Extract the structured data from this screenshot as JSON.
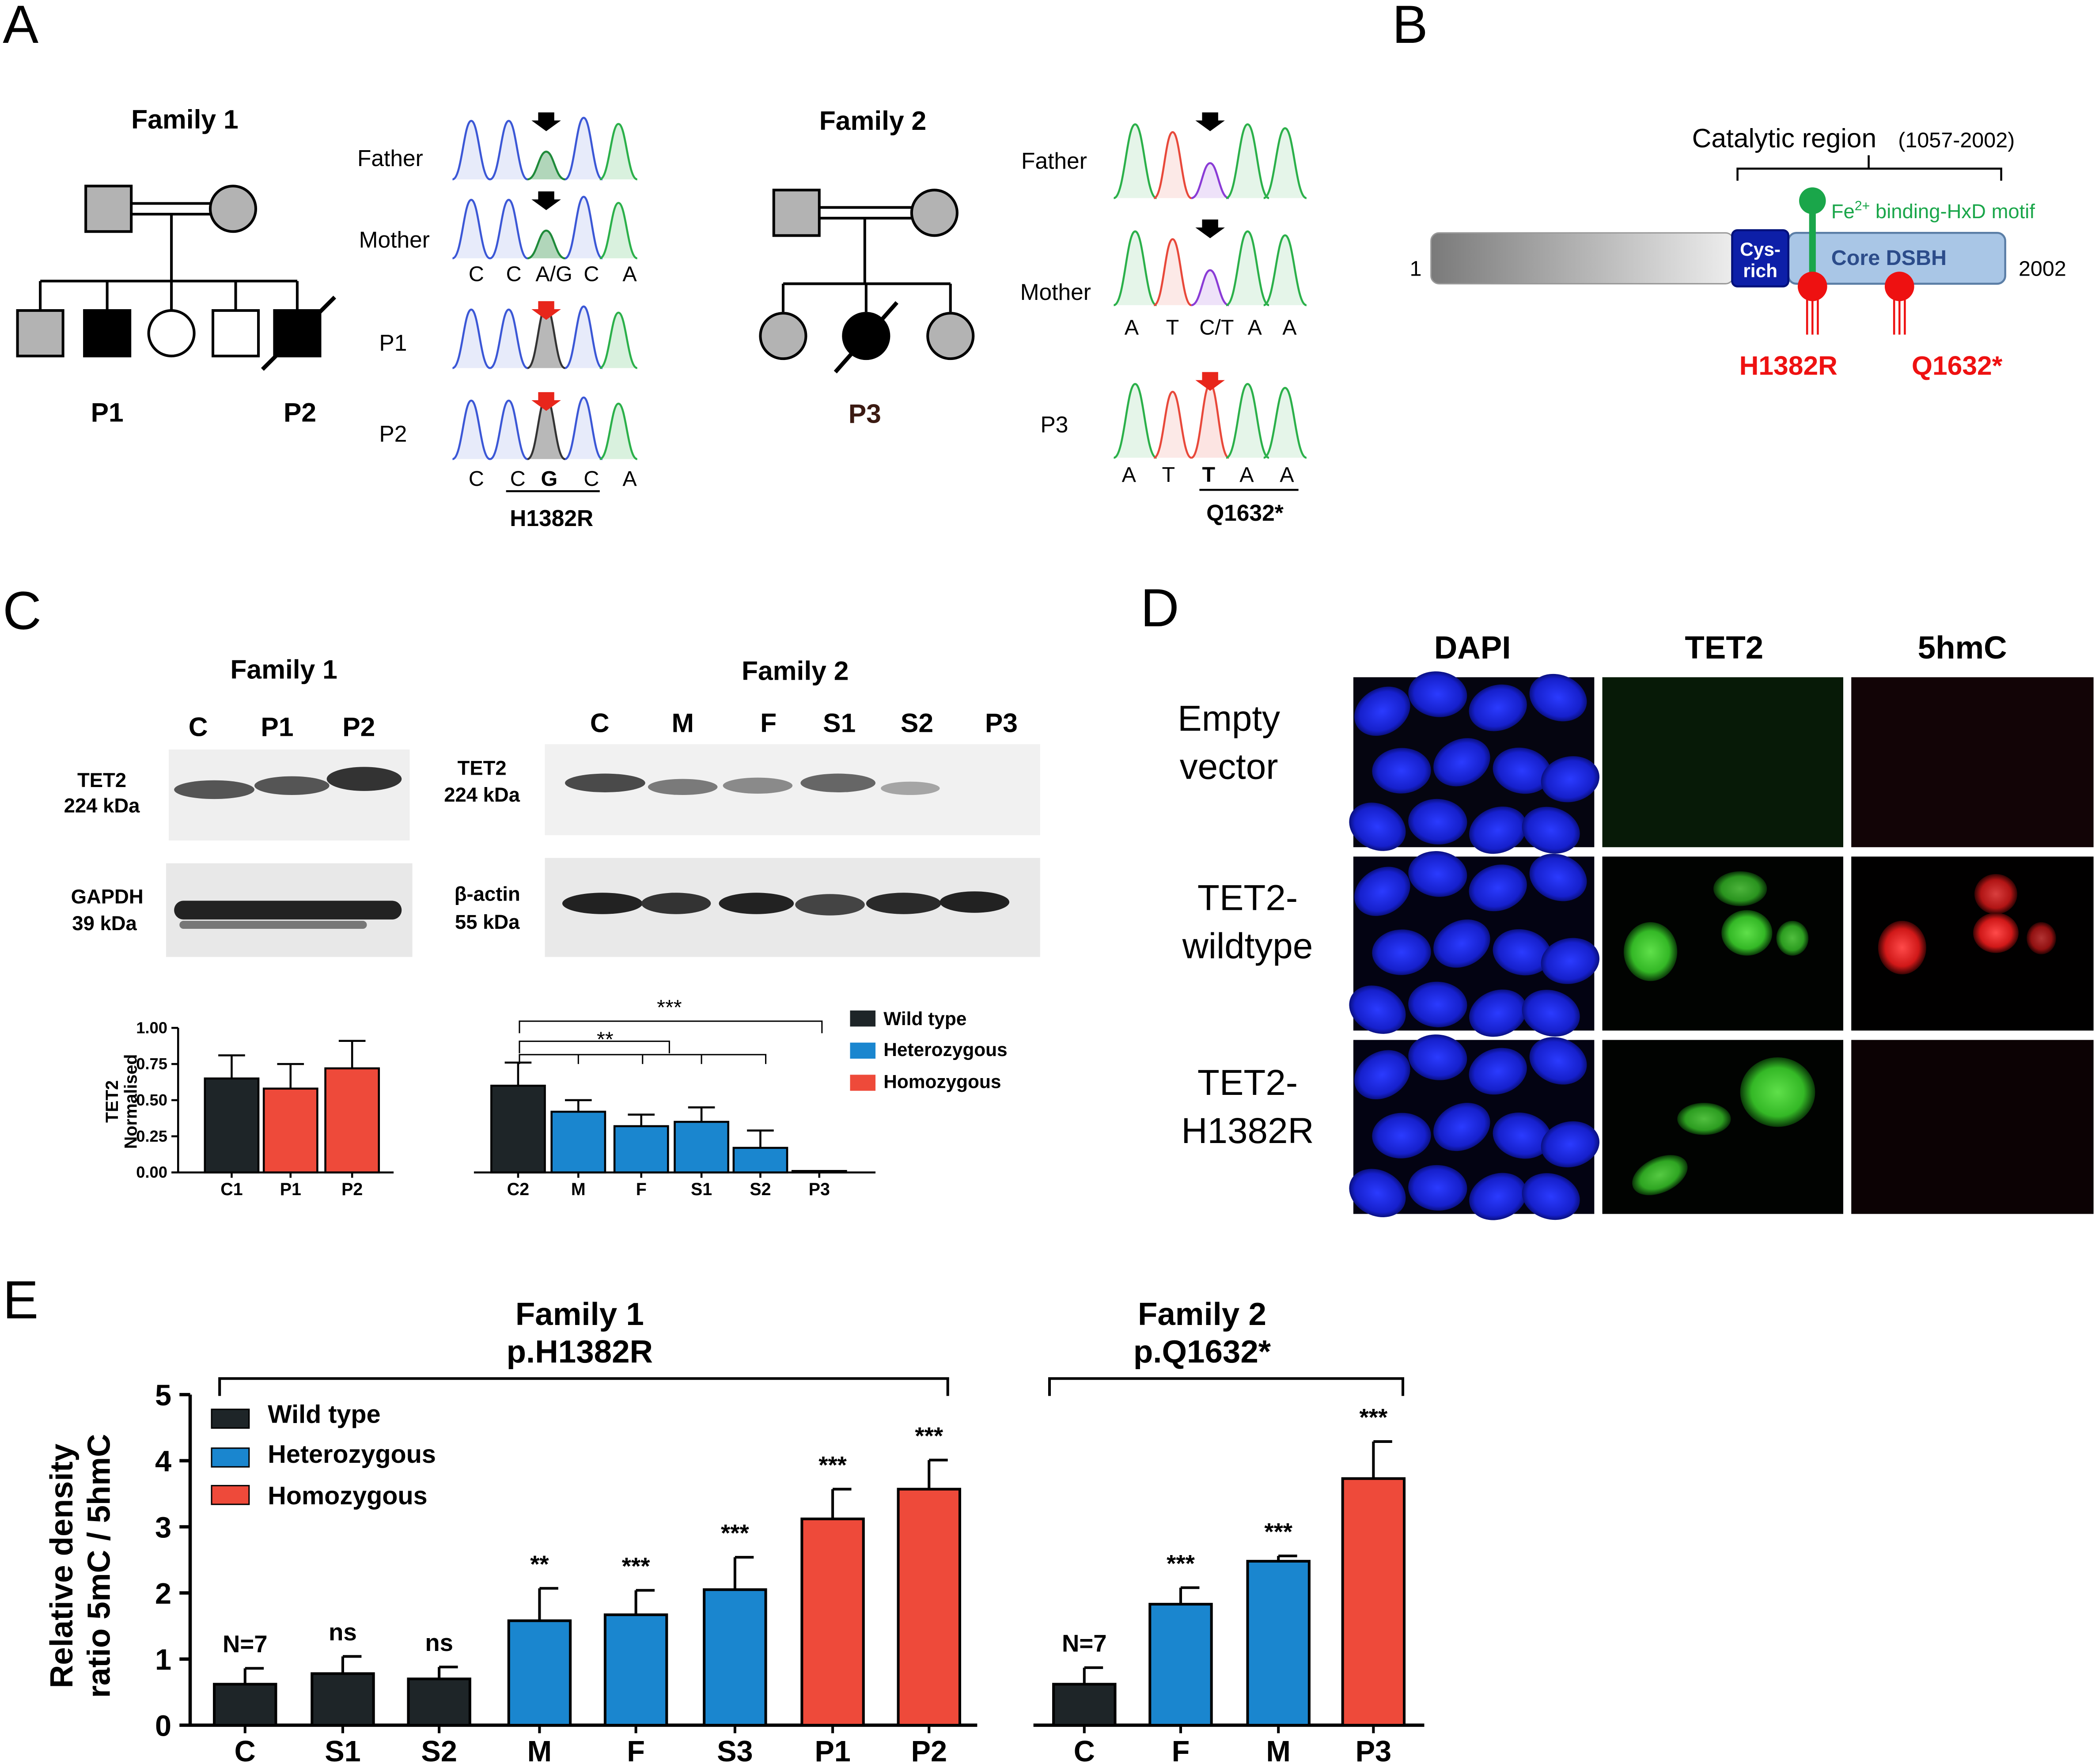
{
  "panels": {
    "a": "A",
    "b": "B",
    "c": "C",
    "d": "D",
    "e": "E"
  },
  "colors": {
    "wild_type": "#1e2528",
    "heterozygous": "#1a86cf",
    "homozygous": "#ee4a3a",
    "mutation_red": "#ee1111",
    "motif_green": "#1aa64a",
    "cys_rich": "#0d1fa8",
    "core_dsbh": "#a9c6e6"
  },
  "panel_a": {
    "family1": {
      "title": "Family 1",
      "p1": "P1",
      "p2": "P2",
      "rows": [
        "Father",
        "Mother",
        "P1",
        "P2"
      ],
      "seq_top": [
        "C",
        "C",
        "A/G",
        "C",
        "A"
      ],
      "seq_bottom": [
        "C",
        "C",
        "G",
        "C",
        "A"
      ],
      "mutation": "H1382R"
    },
    "family2": {
      "title": "Family 2",
      "p3": "P3",
      "rows": [
        "Father",
        "Mother",
        "P3"
      ],
      "seq_top": [
        "A",
        "T",
        "C/T",
        "A",
        "A"
      ],
      "seq_bottom": [
        "A",
        "T",
        "T",
        "A",
        "A"
      ],
      "mutation": "Q1632*"
    }
  },
  "panel_b": {
    "catalytic_label": "Catalytic region",
    "catalytic_range": "(1057-2002)",
    "start": "1",
    "end": "2002",
    "cys_line1": "Cys-",
    "cys_line2": "rich",
    "core_label": "Core DSBH",
    "motif_prefix": "Fe",
    "motif_superscript": "2+",
    "motif_suffix": " binding-HxD motif",
    "mut1": "H1382R",
    "mut2": "Q1632*"
  },
  "panel_c": {
    "family1": {
      "title": "Family 1",
      "lanes": [
        "C",
        "P1",
        "P2"
      ],
      "band1_line1": "TET2",
      "band1_line2": "224 kDa",
      "band2_line1": "GAPDH",
      "band2_line2": "39 kDa"
    },
    "family2": {
      "title": "Family 2",
      "lanes": [
        "C",
        "M",
        "F",
        "S1",
        "S2",
        "P3"
      ],
      "band1_line1": "TET2",
      "band1_line2": "224 kDa",
      "band2_line1": "β-actin",
      "band2_line2": "55 kDa"
    }
  },
  "panel_d": {
    "cols": [
      "DAPI",
      "TET2",
      "5hmC"
    ],
    "rows": [
      {
        "line1": "Empty",
        "line2": "vector"
      },
      {
        "line1": "TET2-",
        "line2": "wildtype"
      },
      {
        "line1": "TET2-",
        "line2": "H1382R"
      }
    ]
  },
  "chart_data": [
    {
      "type": "bar",
      "ylabel_line1": "TET2",
      "ylabel_line2": "Normalised",
      "ylim": [
        0,
        1.0
      ],
      "yticks": [
        "0.00",
        "0.25",
        "0.50",
        "0.75",
        "1.00"
      ],
      "categories": [
        "C1",
        "P1",
        "P2",
        "C2",
        "M",
        "F",
        "S1",
        "S2",
        "P3"
      ],
      "values": [
        0.65,
        0.58,
        0.72,
        0.6,
        0.42,
        0.32,
        0.35,
        0.17,
        0.01
      ],
      "errors": [
        0.16,
        0.17,
        0.19,
        0.16,
        0.08,
        0.08,
        0.1,
        0.12,
        0.0
      ],
      "genotype": [
        "wild_type",
        "homozygous",
        "homozygous",
        "wild_type",
        "heterozygous",
        "heterozygous",
        "heterozygous",
        "heterozygous",
        "homozygous"
      ],
      "sig": [
        "***",
        "**"
      ],
      "legend": [
        "Wild type",
        "Heterozygous",
        "Homozygous"
      ]
    },
    {
      "type": "bar",
      "ylabel_line1": "Relative density",
      "ylabel_line2": "ratio 5mC / 5hmC",
      "ylim": [
        0,
        5
      ],
      "yticks": [
        "0",
        "1",
        "2",
        "3",
        "4",
        "5"
      ],
      "categories": [
        "C",
        "S1",
        "S2",
        "M",
        "F",
        "S3",
        "P1",
        "P2",
        "C",
        "F",
        "M",
        "P3"
      ],
      "values": [
        0.62,
        0.78,
        0.7,
        1.58,
        1.67,
        2.05,
        3.12,
        3.57,
        0.62,
        1.83,
        2.48,
        3.73
      ],
      "errors": [
        0.24,
        0.26,
        0.18,
        0.49,
        0.37,
        0.49,
        0.45,
        0.44,
        0.25,
        0.25,
        0.08,
        0.56
      ],
      "annotations": [
        "N=7",
        "ns",
        "ns",
        "**",
        "***",
        "***",
        "***",
        "***",
        "N=7",
        "***",
        "***",
        "***"
      ],
      "genotype": [
        "wild_type",
        "wild_type",
        "wild_type",
        "heterozygous",
        "heterozygous",
        "heterozygous",
        "homozygous",
        "homozygous",
        "wild_type",
        "heterozygous",
        "heterozygous",
        "homozygous"
      ],
      "groups": [
        {
          "title_line1": "Family 1",
          "title_line2": "p.H1382R"
        },
        {
          "title_line1": "Family 2",
          "title_line2": "p.Q1632*"
        }
      ],
      "legend": [
        "Wild type",
        "Heterozygous",
        "Homozygous"
      ]
    }
  ]
}
